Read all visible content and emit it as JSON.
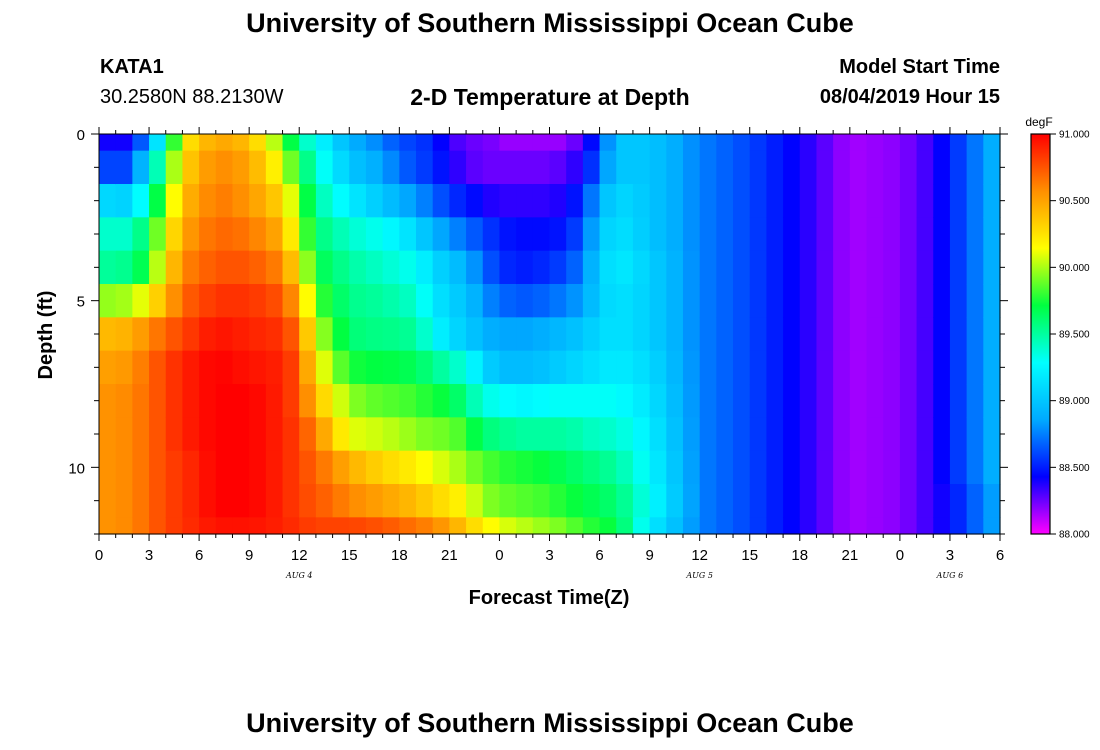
{
  "header": {
    "title": "University of Southern Mississippi Ocean Cube",
    "station": "KATA1",
    "coordinates": "30.2580N 88.2130W",
    "plot_title": "2-D Temperature at Depth",
    "model_start_label": "Model Start Time",
    "model_start_value": "08/04/2019 Hour 15"
  },
  "footer": {
    "title": "University of Southern Mississippi Ocean Cube"
  },
  "chart_data": {
    "type": "heatmap",
    "title": "2-D Temperature at Depth",
    "xlabel": "Forecast Time(Z)",
    "ylabel": "Depth (ft)",
    "x_tick_labels": [
      "0",
      "3",
      "6",
      "9",
      "12",
      "15",
      "18",
      "21",
      "0",
      "3",
      "6",
      "9",
      "12",
      "15",
      "18",
      "21",
      "0",
      "3",
      "6"
    ],
    "date_labels": [
      "AUG 4",
      "AUG 5",
      "AUG 6"
    ],
    "date_label_tick_index": [
      4,
      12,
      17
    ],
    "x_hours": [
      0,
      54
    ],
    "ylim": [
      0,
      12
    ],
    "y_ticks": [
      0,
      5,
      10
    ],
    "y_inverted": true,
    "depth_levels_ft": [
      0,
      1,
      2,
      3,
      4,
      5,
      6,
      7,
      8,
      9,
      10,
      11,
      12
    ],
    "colorbar": {
      "unit": "degF",
      "min": 88.0,
      "max": 91.0,
      "tick_labels": [
        "88.000",
        "88.500",
        "89.000",
        "89.500",
        "90.000",
        "90.500",
        "91.000"
      ],
      "stops": [
        "#ff00ff",
        "#0000ff",
        "#00aaff",
        "#00ffff",
        "#00ff40",
        "#ffff00",
        "#ff9000",
        "#ff0000"
      ]
    },
    "profile_times_hours": [
      0,
      2,
      3,
      4,
      5,
      7,
      9,
      11,
      12,
      13,
      15,
      17,
      18,
      19,
      20,
      21,
      22,
      23,
      24,
      25,
      26,
      27,
      28,
      29,
      30,
      31,
      33,
      36,
      39,
      42,
      45,
      48,
      50,
      51,
      52,
      53,
      54
    ],
    "profiles_degF": [
      [
        88.4,
        88.6,
        89.1,
        89.4,
        89.5,
        89.95,
        90.4,
        90.5,
        90.55,
        90.55,
        90.55,
        90.55,
        90.55
      ],
      [
        88.4,
        88.6,
        89.05,
        89.4,
        89.55,
        90.0,
        90.45,
        90.55,
        90.6,
        90.6,
        90.6,
        90.6,
        90.6
      ],
      [
        88.9,
        89.2,
        89.5,
        89.7,
        89.8,
        90.2,
        90.6,
        90.7,
        90.7,
        90.7,
        90.7,
        90.7,
        90.7
      ],
      [
        89.4,
        89.7,
        89.9,
        90.1,
        90.25,
        90.45,
        90.7,
        90.8,
        90.8,
        90.8,
        90.8,
        90.8,
        90.8
      ],
      [
        90.2,
        90.3,
        90.4,
        90.5,
        90.6,
        90.7,
        90.8,
        90.9,
        90.9,
        90.9,
        90.85,
        90.85,
        90.85
      ],
      [
        90.5,
        90.6,
        90.65,
        90.7,
        90.75,
        90.85,
        90.95,
        91.0,
        91.0,
        91.0,
        91.0,
        91.0,
        90.95
      ],
      [
        90.4,
        90.5,
        90.55,
        90.65,
        90.75,
        90.85,
        90.9,
        90.95,
        91.0,
        91.0,
        91.0,
        91.0,
        90.95
      ],
      [
        89.9,
        90.1,
        90.3,
        90.45,
        90.6,
        90.75,
        90.85,
        90.9,
        90.9,
        90.9,
        90.9,
        90.9,
        90.9
      ],
      [
        89.5,
        89.7,
        89.9,
        90.0,
        90.2,
        90.45,
        90.65,
        90.75,
        90.75,
        90.8,
        90.8,
        90.8,
        90.85
      ],
      [
        89.3,
        89.4,
        89.5,
        89.6,
        89.7,
        89.85,
        90.05,
        90.2,
        90.4,
        90.6,
        90.7,
        90.75,
        90.8
      ],
      [
        88.9,
        89.0,
        89.2,
        89.4,
        89.5,
        89.55,
        89.6,
        89.75,
        89.95,
        90.1,
        90.45,
        90.6,
        90.8
      ],
      [
        88.75,
        88.85,
        89.0,
        89.3,
        89.4,
        89.5,
        89.55,
        89.7,
        89.85,
        90.05,
        90.3,
        90.5,
        90.75
      ],
      [
        88.6,
        88.7,
        88.9,
        89.2,
        89.35,
        89.45,
        89.55,
        89.7,
        89.85,
        90.0,
        90.25,
        90.45,
        90.7
      ],
      [
        88.6,
        88.6,
        88.8,
        89.1,
        89.3,
        89.4,
        89.5,
        89.65,
        89.8,
        89.95,
        90.2,
        90.4,
        90.65
      ],
      [
        88.5,
        88.55,
        88.7,
        88.9,
        89.1,
        89.2,
        89.3,
        89.55,
        89.75,
        89.9,
        90.1,
        90.3,
        90.6
      ],
      [
        88.35,
        88.4,
        88.55,
        88.8,
        89.0,
        89.05,
        89.1,
        89.45,
        89.7,
        89.9,
        90.05,
        90.25,
        90.5
      ],
      [
        88.25,
        88.3,
        88.5,
        88.7,
        88.9,
        89.0,
        89.05,
        89.35,
        89.55,
        89.8,
        89.95,
        90.15,
        90.35
      ],
      [
        88.25,
        88.25,
        88.4,
        88.6,
        88.7,
        88.8,
        88.9,
        89.1,
        89.35,
        89.6,
        89.85,
        89.95,
        90.2
      ],
      [
        88.2,
        88.25,
        88.35,
        88.5,
        88.55,
        88.7,
        88.85,
        88.95,
        89.3,
        89.55,
        89.8,
        89.9,
        90.1
      ],
      [
        88.15,
        88.25,
        88.35,
        88.45,
        88.5,
        88.65,
        88.85,
        88.95,
        89.25,
        89.5,
        89.75,
        89.85,
        90.05
      ],
      [
        88.2,
        88.25,
        88.35,
        88.45,
        88.5,
        88.65,
        88.85,
        88.95,
        89.25,
        89.5,
        89.75,
        89.85,
        90.0
      ],
      [
        88.15,
        88.25,
        88.35,
        88.45,
        88.55,
        88.7,
        88.9,
        89.0,
        89.3,
        89.5,
        89.7,
        89.8,
        89.95
      ],
      [
        88.2,
        88.3,
        88.4,
        88.5,
        88.6,
        88.75,
        88.95,
        89.05,
        89.3,
        89.5,
        89.65,
        89.75,
        89.9
      ],
      [
        88.3,
        88.4,
        88.55,
        88.65,
        88.75,
        88.85,
        89.0,
        89.1,
        89.3,
        89.45,
        89.6,
        89.7,
        89.8
      ],
      [
        88.6,
        88.7,
        88.9,
        89.0,
        89.05,
        89.05,
        89.1,
        89.15,
        89.3,
        89.4,
        89.55,
        89.65,
        89.75
      ],
      [
        89.0,
        89.0,
        89.1,
        89.15,
        89.2,
        89.15,
        89.15,
        89.2,
        89.3,
        89.4,
        89.5,
        89.6,
        89.7
      ],
      [
        89.0,
        89.0,
        89.0,
        89.0,
        89.05,
        89.05,
        89.05,
        89.1,
        89.15,
        89.2,
        89.25,
        89.3,
        89.2
      ],
      [
        88.75,
        88.75,
        88.75,
        88.75,
        88.75,
        88.75,
        88.75,
        88.75,
        88.75,
        88.75,
        88.75,
        88.75,
        88.75
      ],
      [
        88.6,
        88.6,
        88.6,
        88.6,
        88.6,
        88.6,
        88.6,
        88.6,
        88.6,
        88.6,
        88.6,
        88.6,
        88.6
      ],
      [
        88.4,
        88.4,
        88.4,
        88.4,
        88.4,
        88.4,
        88.4,
        88.4,
        88.4,
        88.4,
        88.4,
        88.4,
        88.4
      ],
      [
        88.15,
        88.15,
        88.15,
        88.15,
        88.15,
        88.15,
        88.15,
        88.15,
        88.15,
        88.15,
        88.15,
        88.15,
        88.15
      ],
      [
        88.2,
        88.2,
        88.2,
        88.2,
        88.2,
        88.2,
        88.2,
        88.2,
        88.2,
        88.2,
        88.2,
        88.2,
        88.2
      ],
      [
        88.35,
        88.35,
        88.35,
        88.35,
        88.35,
        88.35,
        88.35,
        88.35,
        88.35,
        88.35,
        88.35,
        88.35,
        88.35
      ],
      [
        88.5,
        88.5,
        88.5,
        88.5,
        88.5,
        88.5,
        88.5,
        88.5,
        88.5,
        88.5,
        88.5,
        88.45,
        88.45
      ],
      [
        88.65,
        88.65,
        88.65,
        88.65,
        88.65,
        88.65,
        88.65,
        88.65,
        88.65,
        88.65,
        88.65,
        88.6,
        88.6
      ],
      [
        88.8,
        88.8,
        88.8,
        88.8,
        88.8,
        88.8,
        88.8,
        88.8,
        88.8,
        88.8,
        88.8,
        88.75,
        88.75
      ],
      [
        88.95,
        88.95,
        88.95,
        88.95,
        88.95,
        88.95,
        88.95,
        88.95,
        88.95,
        88.95,
        88.95,
        88.9,
        88.9
      ]
    ]
  }
}
